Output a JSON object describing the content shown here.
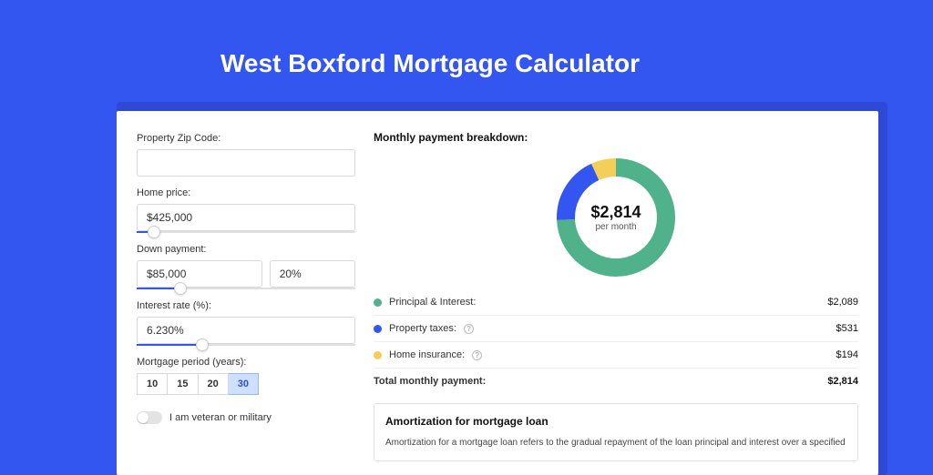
{
  "page": {
    "title": "West Boxford Mortgage Calculator",
    "background_color": "#3355f0",
    "shadow_color": "#2e49d4",
    "card_color": "#ffffff"
  },
  "form": {
    "zip": {
      "label": "Property Zip Code:",
      "value": ""
    },
    "home_price": {
      "label": "Home price:",
      "value": "$425,000",
      "slider_pct": 8
    },
    "down_payment": {
      "label": "Down payment:",
      "amount": "$85,000",
      "percent": "20%",
      "slider_pct": 20
    },
    "interest_rate": {
      "label": "Interest rate (%):",
      "value": "6.230%",
      "slider_pct": 30
    },
    "period": {
      "label": "Mortgage period (years):",
      "options": [
        "10",
        "15",
        "20",
        "30"
      ],
      "selected": "30"
    },
    "veteran": {
      "label": "I am veteran or military",
      "checked": false
    }
  },
  "breakdown": {
    "title": "Monthly payment breakdown:",
    "donut": {
      "amount": "$2,814",
      "sub": "per month",
      "segments": [
        {
          "name": "Principal & Interest",
          "value": 2089,
          "pct": 74.2,
          "color": "#4fb28a"
        },
        {
          "name": "Property taxes",
          "value": 531,
          "pct": 18.9,
          "color": "#3355f0"
        },
        {
          "name": "Home insurance",
          "value": 194,
          "pct": 6.9,
          "color": "#f3cf5a"
        }
      ],
      "thickness": 20,
      "radius": 55
    },
    "rows": [
      {
        "label": "Principal & Interest:",
        "value": "$2,089",
        "color": "#4fb28a",
        "info": false
      },
      {
        "label": "Property taxes:",
        "value": "$531",
        "color": "#3355f0",
        "info": true
      },
      {
        "label": "Home insurance:",
        "value": "$194",
        "color": "#f3cf5a",
        "info": true
      }
    ],
    "total": {
      "label": "Total monthly payment:",
      "value": "$2,814"
    }
  },
  "amortization": {
    "title": "Amortization for mortgage loan",
    "text": "Amortization for a mortgage loan refers to the gradual repayment of the loan principal and interest over a specified"
  }
}
